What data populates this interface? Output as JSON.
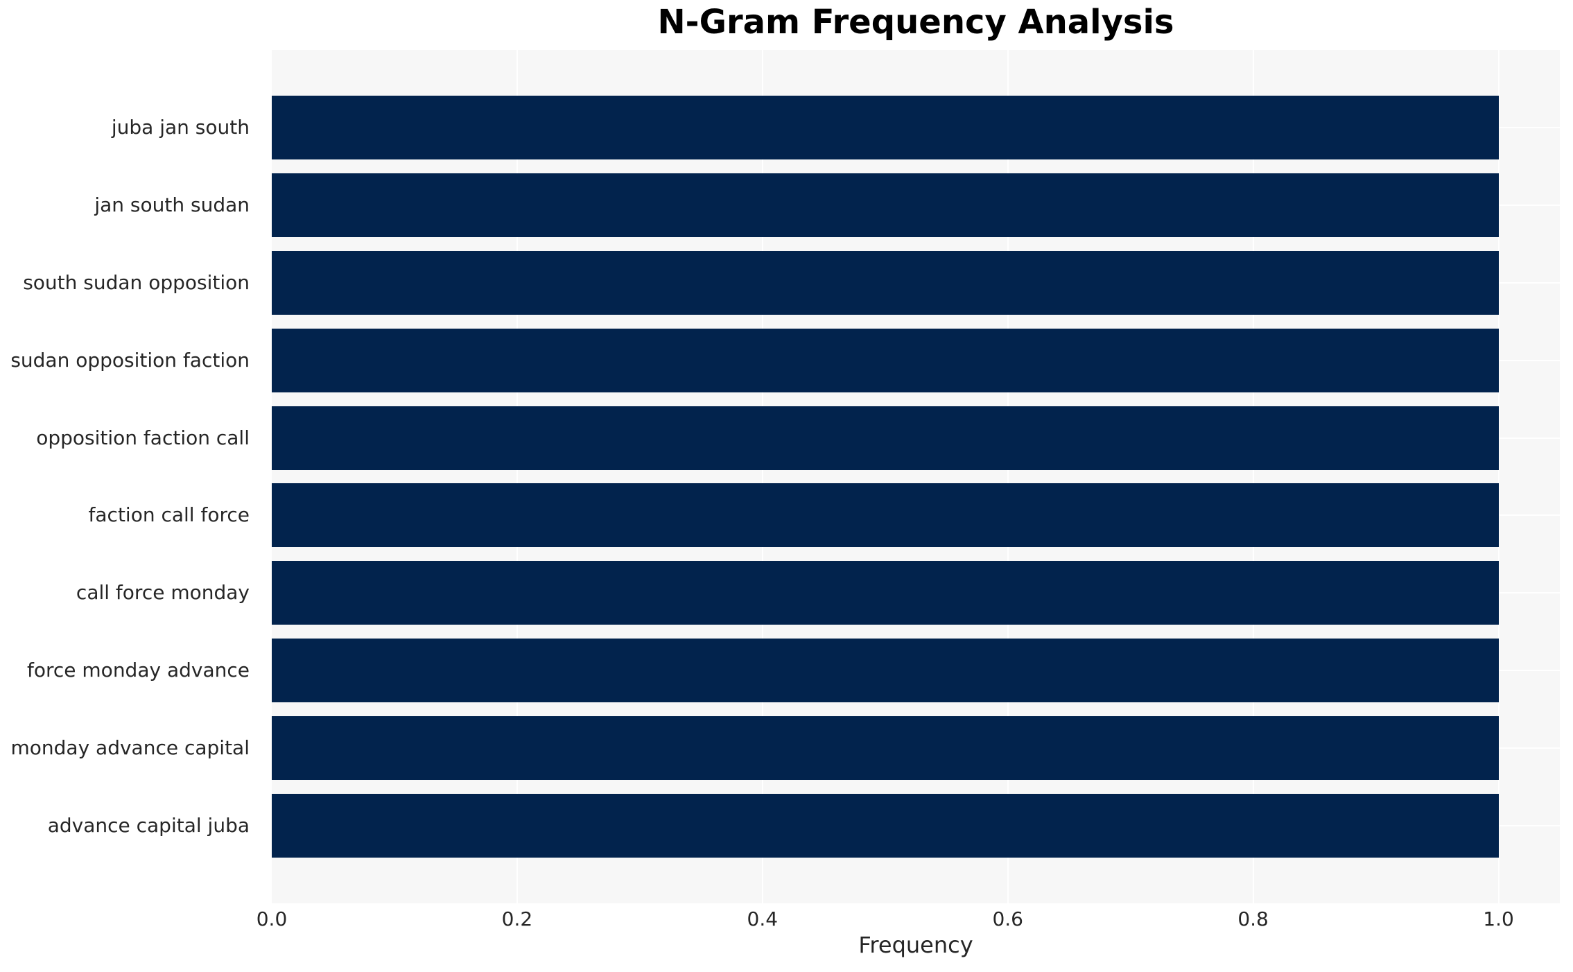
{
  "chart_data": {
    "type": "bar",
    "orientation": "horizontal",
    "title": "N-Gram Frequency Analysis",
    "xlabel": "Frequency",
    "ylabel": "",
    "categories": [
      "juba jan south",
      "jan south sudan",
      "south sudan opposition",
      "sudan opposition faction",
      "opposition faction call",
      "faction call force",
      "call force monday",
      "force monday advance",
      "monday advance capital",
      "advance capital juba"
    ],
    "values": [
      1.0,
      1.0,
      1.0,
      1.0,
      1.0,
      1.0,
      1.0,
      1.0,
      1.0,
      1.0
    ],
    "xticks": [
      "0.0",
      "0.2",
      "0.4",
      "0.6",
      "0.8",
      "1.0"
    ],
    "xtick_values": [
      0,
      0.2,
      0.4,
      0.6,
      0.8,
      1.0
    ],
    "xlim": [
      0,
      1.05
    ],
    "grid": "on",
    "legend": "none",
    "colors": {
      "bar": "#02234d",
      "plot_background": "#f7f7f7",
      "figure_background": "#ffffff",
      "gridline": "#ffffff",
      "title_text": "#000000",
      "axis_text": "#262626"
    }
  }
}
